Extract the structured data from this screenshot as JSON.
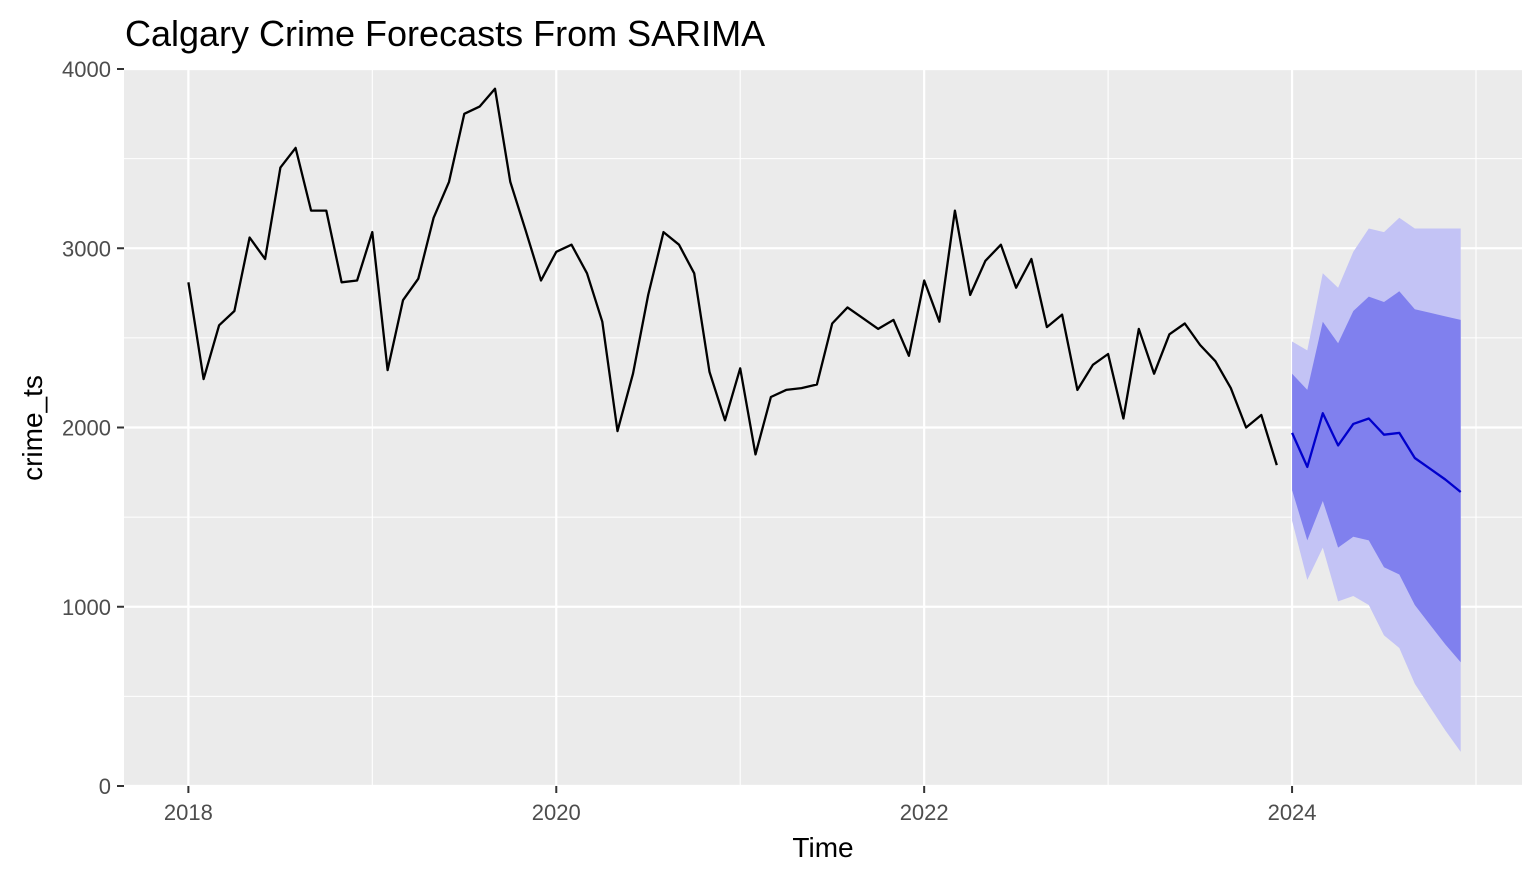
{
  "chart_data": {
    "type": "line",
    "title": "Calgary Crime Forecasts From SARIMA",
    "xlabel": "Time",
    "ylabel": "crime_ts",
    "xlim": [
      2017.65,
      2025.25
    ],
    "ylim": [
      0,
      4000
    ],
    "x_ticks": [
      2018,
      2020,
      2022,
      2024
    ],
    "x_tick_labels": [
      "2018",
      "2020",
      "2022",
      "2024"
    ],
    "y_ticks": [
      0,
      1000,
      2000,
      3000,
      4000
    ],
    "y_tick_labels": [
      "0",
      "1000",
      "2000",
      "3000",
      "4000"
    ],
    "grid": true,
    "legend": "none",
    "colors": {
      "panel_background": "#ebebeb",
      "grid_line": "#ffffff",
      "observed_line": "#000000",
      "forecast_line": "#0000cc",
      "interval_95": "#c3c3f5",
      "interval_80": "#8080ee"
    },
    "observed": {
      "x": [
        2018.0,
        2018.083,
        2018.167,
        2018.25,
        2018.333,
        2018.417,
        2018.5,
        2018.583,
        2018.667,
        2018.75,
        2018.833,
        2018.917,
        2019.0,
        2019.083,
        2019.167,
        2019.25,
        2019.333,
        2019.417,
        2019.5,
        2019.583,
        2019.667,
        2019.75,
        2019.833,
        2019.917,
        2020.0,
        2020.083,
        2020.167,
        2020.25,
        2020.333,
        2020.417,
        2020.5,
        2020.583,
        2020.667,
        2020.75,
        2020.833,
        2020.917,
        2021.0,
        2021.083,
        2021.167,
        2021.25,
        2021.333,
        2021.417,
        2021.5,
        2021.583,
        2021.667,
        2021.75,
        2021.833,
        2021.917,
        2022.0,
        2022.083,
        2022.167,
        2022.25,
        2022.333,
        2022.417,
        2022.5,
        2022.583,
        2022.667,
        2022.75,
        2022.833,
        2022.917,
        2023.0,
        2023.083,
        2023.167,
        2023.25,
        2023.333,
        2023.417,
        2023.5,
        2023.583,
        2023.667,
        2023.75,
        2023.833,
        2023.917
      ],
      "y": [
        2810,
        2270,
        2570,
        2650,
        3060,
        2940,
        3450,
        3560,
        3210,
        3210,
        2810,
        2820,
        3090,
        2320,
        2710,
        2830,
        3170,
        3370,
        3750,
        3790,
        3890,
        3370,
        3100,
        2820,
        2980,
        3020,
        2860,
        2590,
        1980,
        2300,
        2740,
        3090,
        3020,
        2860,
        2310,
        2040,
        2330,
        1850,
        2170,
        2210,
        2220,
        2240,
        2580,
        2670,
        2610,
        2550,
        2600,
        2400,
        2820,
        2590,
        3210,
        2740,
        2930,
        3020,
        2780,
        2940,
        2560,
        2630,
        2210,
        2350,
        2410,
        2050,
        2550,
        2300,
        2520,
        2580,
        2460,
        2370,
        2220,
        2000,
        2070,
        1790
      ]
    },
    "forecast": {
      "x": [
        2024.0,
        2024.083,
        2024.167,
        2024.25,
        2024.333,
        2024.417,
        2024.5,
        2024.583,
        2024.667,
        2024.75,
        2024.833,
        2024.917
      ],
      "mean": [
        1970,
        1780,
        2080,
        1900,
        2020,
        2050,
        1960,
        1970,
        1830,
        1770,
        1710,
        1640
      ],
      "lo80": [
        1650,
        1370,
        1590,
        1330,
        1390,
        1370,
        1220,
        1180,
        1010,
        900,
        790,
        690
      ],
      "hi80": [
        2300,
        2210,
        2590,
        2470,
        2650,
        2730,
        2700,
        2760,
        2660,
        2640,
        2620,
        2600
      ],
      "lo95": [
        1480,
        1150,
        1330,
        1030,
        1060,
        1010,
        840,
        770,
        570,
        440,
        310,
        190
      ],
      "hi95": [
        2480,
        2430,
        2860,
        2780,
        2980,
        3110,
        3090,
        3170,
        3110,
        3110,
        3110,
        3110
      ]
    }
  }
}
